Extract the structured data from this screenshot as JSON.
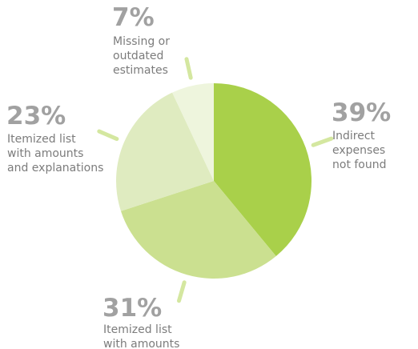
{
  "chart_data": {
    "type": "pie",
    "slices": [
      {
        "percent_label": "39%",
        "value": 39,
        "label_lines": [
          "Indirect",
          "expenses",
          "not found"
        ],
        "color": "#a9d04a"
      },
      {
        "percent_label": "31%",
        "value": 31,
        "label_lines": [
          "Itemized list",
          "with amounts"
        ],
        "color": "#cbe090"
      },
      {
        "percent_label": "23%",
        "value": 23,
        "label_lines": [
          "Itemized list",
          "with amounts",
          "and explanations"
        ],
        "color": "#dfebc0"
      },
      {
        "percent_label": "7%",
        "value": 7,
        "label_lines": [
          "Missing or",
          "outdated",
          "estimates"
        ],
        "color": "#eef5dd"
      }
    ],
    "start_angle": "12 o'clock",
    "direction": "clockwise",
    "leader_color": "#d4e7a0"
  }
}
